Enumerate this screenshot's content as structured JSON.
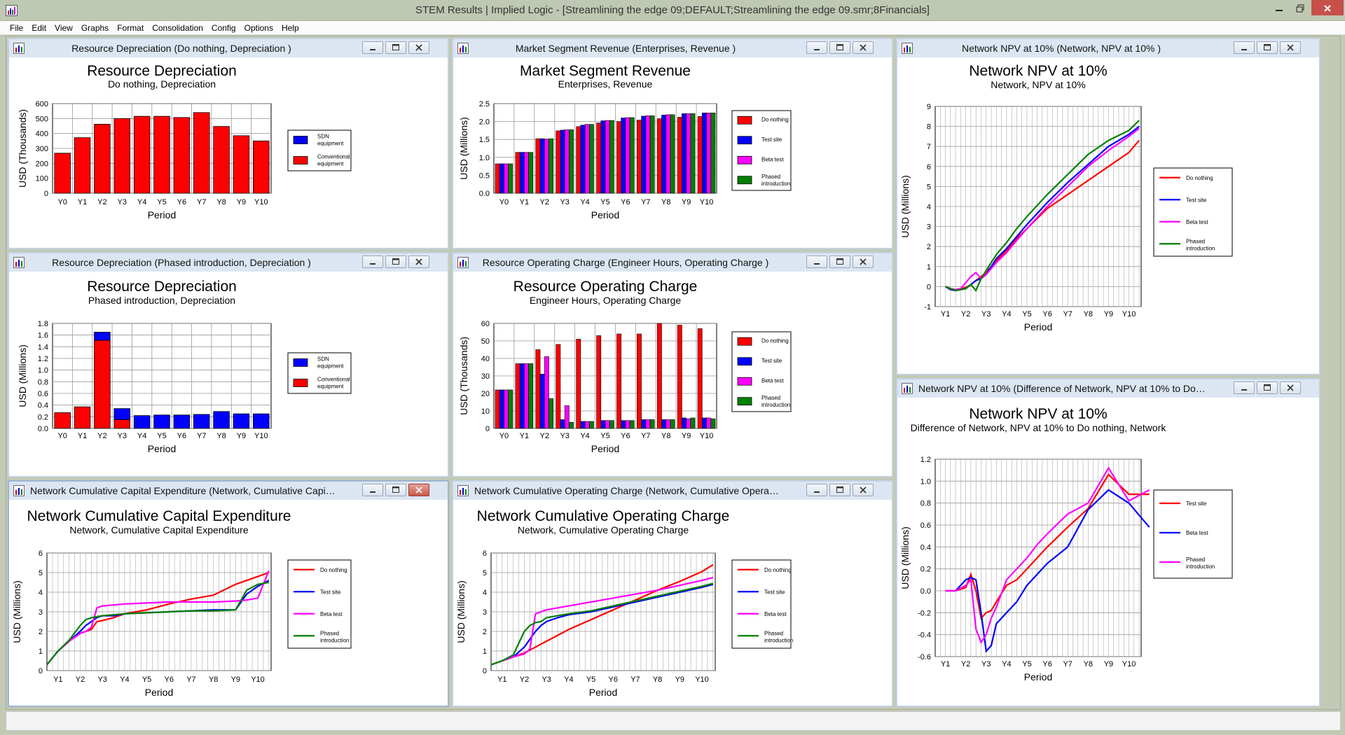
{
  "window": {
    "title": "STEM Results | Implied Logic - [Streamlining the edge 09;DEFAULT;Streamlining the edge 09.smr;8Financials]"
  },
  "menu": [
    "File",
    "Edit",
    "View",
    "Graphs",
    "Format",
    "Consolidation",
    "Config",
    "Options",
    "Help"
  ],
  "colors": {
    "red": "#ff0000",
    "blue": "#0000ff",
    "magenta": "#ff00ff",
    "green": "#008000"
  },
  "panels": [
    {
      "title": "Resource Depreciation (Do nothing, Depreciation )",
      "chart_data": {
        "type": "bar",
        "stacked": true,
        "title": "Resource Depreciation",
        "subtitle": "Do nothing, Depreciation",
        "xlabel": "Period",
        "ylabel": "USD  (Thousands)",
        "ylim": [
          0,
          600
        ],
        "yticks": [
          0,
          100,
          200,
          300,
          400,
          500,
          600
        ],
        "categories": [
          "Y0",
          "Y1",
          "Y2",
          "Y3",
          "Y4",
          "Y5",
          "Y6",
          "Y7",
          "Y8",
          "Y9",
          "Y10"
        ],
        "series": [
          {
            "name": "Conventional equipment",
            "color": "red",
            "values": [
              268,
              372,
              462,
              500,
              515,
              515,
              507,
              540,
              447,
              385,
              350
            ]
          },
          {
            "name": "SDN equipment",
            "color": "blue",
            "values": [
              0,
              0,
              0,
              0,
              0,
              0,
              0,
              0,
              0,
              0,
              0
            ]
          }
        ],
        "legend_order": [
          1,
          0
        ],
        "legend": "right",
        "grid": true
      }
    },
    {
      "title": "Market Segment Revenue (Enterprises, Revenue )",
      "chart_data": {
        "type": "bar",
        "title": "Market Segment Revenue",
        "subtitle": "Enterprises, Revenue",
        "xlabel": "Period",
        "ylabel": "USD  (Millions)",
        "ylim": [
          0,
          2.5
        ],
        "yticks": [
          "0.0",
          "0.5",
          "1.0",
          "1.5",
          "2.0",
          "2.5"
        ],
        "categories": [
          "Y0",
          "Y1",
          "Y2",
          "Y3",
          "Y4",
          "Y5",
          "Y6",
          "Y7",
          "Y8",
          "Y9",
          "Y10"
        ],
        "series": [
          {
            "name": "Do nothing",
            "color": "red",
            "values": [
              0.82,
              1.14,
              1.52,
              1.74,
              1.86,
              1.96,
              2.0,
              2.04,
              2.08,
              2.12,
              2.14
            ]
          },
          {
            "name": "Test site",
            "color": "blue",
            "values": [
              0.82,
              1.14,
              1.52,
              1.76,
              1.9,
              2.02,
              2.1,
              2.15,
              2.18,
              2.22,
              2.24
            ]
          },
          {
            "name": "Beta test",
            "color": "magenta",
            "values": [
              0.82,
              1.14,
              1.51,
              1.77,
              1.92,
              2.03,
              2.11,
              2.16,
              2.19,
              2.22,
              2.24
            ]
          },
          {
            "name": "Phased introduction",
            "color": "green",
            "values": [
              0.82,
              1.14,
              1.52,
              1.77,
              1.92,
              2.03,
              2.11,
              2.16,
              2.19,
              2.22,
              2.24
            ]
          }
        ],
        "legend": "right",
        "grid": true
      }
    },
    {
      "title": "Network NPV at 10% (Network, NPV at 10% )",
      "chart_data": {
        "type": "line",
        "title": "Network NPV at 10%",
        "subtitle": "Network, NPV at 10%",
        "xlabel": "Period",
        "ylabel": "USD  (Millions)",
        "ylim": [
          -1,
          9
        ],
        "yticks": [
          "-1",
          "0",
          "1",
          "2",
          "3",
          "4",
          "5",
          "6",
          "7",
          "8",
          "9"
        ],
        "categories": [
          "Y1",
          "Y2",
          "Y3",
          "Y4",
          "Y5",
          "Y6",
          "Y7",
          "Y8",
          "Y9",
          "Y10"
        ],
        "x": [
          0,
          0.25,
          0.5,
          0.75,
          1.0,
          1.25,
          1.5,
          1.75,
          2.0,
          2.25,
          2.5,
          3.0,
          3.5,
          4.0,
          5.0,
          6.0,
          7.0,
          8.0,
          9.0,
          9.5
        ],
        "series": [
          {
            "name": "Do nothing",
            "color": "red",
            "values": [
              0,
              -0.1,
              -0.15,
              -0.1,
              -0.05,
              0.1,
              0.3,
              0.5,
              0.7,
              1.0,
              1.3,
              1.8,
              2.4,
              2.9,
              3.9,
              4.6,
              5.3,
              6.0,
              6.7,
              7.3
            ]
          },
          {
            "name": "Test site",
            "color": "blue",
            "values": [
              0,
              -0.15,
              -0.2,
              -0.15,
              -0.1,
              0.1,
              0.3,
              0.4,
              0.6,
              1.0,
              1.4,
              1.9,
              2.5,
              3.1,
              4.2,
              5.2,
              6.1,
              7.0,
              7.6,
              8.0
            ]
          },
          {
            "name": "Beta test",
            "color": "magenta",
            "values": [
              0,
              -0.1,
              -0.15,
              -0.1,
              0.2,
              0.5,
              0.7,
              0.4,
              0.6,
              0.9,
              1.2,
              1.7,
              2.3,
              2.9,
              4.0,
              5.0,
              6.0,
              6.8,
              7.5,
              7.9
            ]
          },
          {
            "name": "Phased introduction",
            "color": "green",
            "values": [
              0,
              -0.1,
              -0.2,
              -0.15,
              -0.1,
              0.1,
              -0.2,
              0.4,
              0.8,
              1.2,
              1.6,
              2.2,
              2.9,
              3.5,
              4.6,
              5.6,
              6.6,
              7.3,
              7.8,
              8.3
            ]
          }
        ],
        "legend": "right",
        "grid": true
      }
    },
    {
      "title": "Resource Depreciation (Phased introduction, Depreciation )",
      "chart_data": {
        "type": "bar",
        "stacked": true,
        "title": "Resource Depreciation",
        "subtitle": "Phased introduction, Depreciation",
        "xlabel": "Period",
        "ylabel": "USD  (Millions)",
        "ylim": [
          0,
          1.8
        ],
        "yticks": [
          "0.0",
          "0.2",
          "0.4",
          "0.6",
          "0.8",
          "1.0",
          "1.2",
          "1.4",
          "1.6",
          "1.8"
        ],
        "categories": [
          "Y0",
          "Y1",
          "Y2",
          "Y3",
          "Y4",
          "Y5",
          "Y6",
          "Y7",
          "Y8",
          "Y9",
          "Y10"
        ],
        "series": [
          {
            "name": "Conventional equipment",
            "color": "red",
            "values": [
              0.27,
              0.37,
              1.51,
              0.15,
              0,
              0,
              0,
              0,
              0,
              0,
              0
            ]
          },
          {
            "name": "SDN equipment",
            "color": "blue",
            "values": [
              0,
              0,
              0.14,
              0.19,
              0.22,
              0.23,
              0.23,
              0.24,
              0.29,
              0.25,
              0.25
            ]
          }
        ],
        "legend_order": [
          1,
          0
        ],
        "legend": "right",
        "grid": true
      }
    },
    {
      "title": "Resource Operating Charge (Engineer Hours, Operating Charge )",
      "chart_data": {
        "type": "bar",
        "title": "Resource Operating Charge",
        "subtitle": "Engineer Hours, Operating Charge",
        "xlabel": "Period",
        "ylabel": "USD  (Thousands)",
        "ylim": [
          0,
          60
        ],
        "yticks": [
          0,
          10,
          20,
          30,
          40,
          50,
          60
        ],
        "categories": [
          "Y0",
          "Y1",
          "Y2",
          "Y3",
          "Y4",
          "Y5",
          "Y6",
          "Y7",
          "Y8",
          "Y9",
          "Y10"
        ],
        "series": [
          {
            "name": "Do nothing",
            "color": "red",
            "values": [
              22,
              37,
              45,
              48,
              51,
              53,
              54,
              54,
              60,
              59,
              57
            ]
          },
          {
            "name": "Test site",
            "color": "blue",
            "values": [
              22,
              37,
              31,
              5,
              4,
              4.5,
              4.5,
              5,
              5,
              6,
              6
            ]
          },
          {
            "name": "Beta test",
            "color": "magenta",
            "values": [
              22,
              37,
              41,
              13,
              4,
              4.5,
              4.5,
              5,
              5,
              5.5,
              6
            ]
          },
          {
            "name": "Phased introduction",
            "color": "green",
            "values": [
              22,
              37,
              17,
              3.5,
              4,
              4.5,
              4.5,
              5,
              5,
              6,
              5.5
            ]
          }
        ],
        "legend": "right",
        "grid": true
      }
    },
    {
      "title": "Network NPV at 10% (Difference of Network, NPV at 10% to Do not...",
      "chart_data": {
        "type": "line",
        "title": "Network NPV at 10%",
        "subtitle": "Difference of Network, NPV at 10% to Do nothing, Network",
        "xlabel": "Period",
        "ylabel": "USD  (Millions)",
        "ylim": [
          -0.6,
          1.2
        ],
        "yticks": [
          "-0.6",
          "-0.4",
          "-0.2",
          "0.0",
          "0.2",
          "0.4",
          "0.6",
          "0.8",
          "1.0",
          "1.2"
        ],
        "categories": [
          "Y1",
          "Y2",
          "Y3",
          "Y4",
          "Y5",
          "Y6",
          "Y7",
          "Y8",
          "Y9",
          "Y10"
        ],
        "x": [
          0,
          0.5,
          1.0,
          1.25,
          1.5,
          1.75,
          2.0,
          2.25,
          2.5,
          3.0,
          3.5,
          4.0,
          4.5,
          5.0,
          6.0,
          7.0,
          8.0,
          9.0,
          10.0
        ],
        "series": [
          {
            "name": "Test site",
            "color": "red",
            "values": [
              0,
              0,
              0.03,
              0.15,
              0.0,
              -0.25,
              -0.2,
              -0.18,
              -0.1,
              0.05,
              0.1,
              0.2,
              0.3,
              0.4,
              0.58,
              0.75,
              1.06,
              0.88,
              0.88
            ]
          },
          {
            "name": "Beta test",
            "color": "blue",
            "values": [
              0,
              0,
              0.1,
              0.12,
              0.1,
              -0.2,
              -0.55,
              -0.5,
              -0.3,
              -0.2,
              -0.1,
              0.05,
              0.15,
              0.25,
              0.4,
              0.74,
              0.92,
              0.8,
              0.58
            ]
          },
          {
            "name": "Phased introduction",
            "color": "magenta",
            "values": [
              0,
              0,
              0.05,
              0.1,
              -0.35,
              -0.47,
              -0.4,
              -0.25,
              -0.15,
              0.1,
              0.2,
              0.3,
              0.42,
              0.52,
              0.7,
              0.8,
              1.12,
              0.82,
              0.92
            ]
          }
        ],
        "legend": "right",
        "grid": true
      }
    },
    {
      "title": "Network Cumulative Capital Expenditure (Network, Cumulative Capital E...",
      "chart_data": {
        "type": "line",
        "title": "Network Cumulative Capital Expenditure",
        "subtitle": "Network, Cumulative Capital Expenditure",
        "xlabel": "Period",
        "ylabel": "USD  (Millions)",
        "ylim": [
          0,
          6
        ],
        "yticks": [
          0,
          1,
          2,
          3,
          4,
          5,
          6
        ],
        "categories": [
          "Y1",
          "Y2",
          "Y3",
          "Y4",
          "Y5",
          "Y6",
          "Y7",
          "Y8",
          "Y9",
          "Y10"
        ],
        "x": [
          -0.5,
          0,
          0.5,
          1.0,
          1.25,
          1.5,
          1.75,
          2.0,
          2.5,
          3.0,
          4.0,
          5.0,
          6.0,
          7.0,
          8.0,
          8.5,
          9.0,
          9.5
        ],
        "series": [
          {
            "name": "Do nothing",
            "color": "red",
            "values": [
              0.3,
              1.0,
              1.5,
              1.9,
              2.0,
              2.1,
              2.5,
              2.55,
              2.7,
              2.9,
              3.1,
              3.4,
              3.65,
              3.85,
              4.4,
              4.6,
              4.8,
              5.0
            ]
          },
          {
            "name": "Test site",
            "color": "blue",
            "values": [
              0.3,
              1.0,
              1.5,
              2.0,
              2.3,
              2.5,
              2.7,
              2.8,
              2.8,
              2.9,
              2.95,
              3.0,
              3.05,
              3.1,
              3.1,
              3.9,
              4.3,
              4.6
            ]
          },
          {
            "name": "Beta test",
            "color": "magenta",
            "values": [
              0.3,
              1.0,
              1.5,
              1.9,
              2.0,
              2.2,
              3.2,
              3.3,
              3.35,
              3.4,
              3.45,
              3.5,
              3.5,
              3.5,
              3.55,
              3.6,
              3.7,
              5.1
            ]
          },
          {
            "name": "Phased introduction",
            "color": "green",
            "values": [
              0.3,
              1.0,
              1.55,
              2.3,
              2.6,
              2.7,
              2.75,
              2.8,
              2.85,
              2.9,
              2.95,
              3.0,
              3.05,
              3.05,
              3.1,
              4.1,
              4.4,
              4.5
            ]
          }
        ],
        "legend": "right",
        "grid": true
      }
    },
    {
      "title": "Network Cumulative Operating Charge (Network, Cumulative Operating ...",
      "chart_data": {
        "type": "line",
        "title": "Network Cumulative Operating Charge",
        "subtitle": "Network, Cumulative Operating Charge",
        "xlabel": "Period",
        "ylabel": "USD  (Millions)",
        "ylim": [
          0,
          6
        ],
        "yticks": [
          0,
          1,
          2,
          3,
          4,
          5,
          6
        ],
        "categories": [
          "Y1",
          "Y2",
          "Y3",
          "Y4",
          "Y5",
          "Y6",
          "Y7",
          "Y8",
          "Y9",
          "Y10"
        ],
        "x": [
          -0.5,
          0,
          0.5,
          1.0,
          1.25,
          1.5,
          1.75,
          2.0,
          2.5,
          3.0,
          4.0,
          5.0,
          6.0,
          7.0,
          8.0,
          9.0,
          9.5
        ],
        "series": [
          {
            "name": "Do nothing",
            "color": "red",
            "values": [
              0.3,
              0.5,
              0.7,
              0.9,
              1.05,
              1.2,
              1.35,
              1.5,
              1.8,
              2.1,
              2.6,
              3.1,
              3.6,
              4.1,
              4.55,
              5.05,
              5.4
            ]
          },
          {
            "name": "Test site",
            "color": "blue",
            "values": [
              0.3,
              0.5,
              0.7,
              1.2,
              1.6,
              2.0,
              2.3,
              2.5,
              2.7,
              2.85,
              3.0,
              3.25,
              3.5,
              3.75,
              4.0,
              4.25,
              4.4
            ]
          },
          {
            "name": "Beta test",
            "color": "magenta",
            "values": [
              0.3,
              0.5,
              0.7,
              0.85,
              1.1,
              2.9,
              3.0,
              3.1,
              3.2,
              3.3,
              3.5,
              3.7,
              3.9,
              4.1,
              4.35,
              4.6,
              4.75
            ]
          },
          {
            "name": "Phased introduction",
            "color": "green",
            "values": [
              0.3,
              0.5,
              0.8,
              2.0,
              2.3,
              2.45,
              2.5,
              2.7,
              2.8,
              2.9,
              3.05,
              3.3,
              3.55,
              3.8,
              4.05,
              4.3,
              4.45
            ]
          }
        ],
        "legend": "right",
        "grid": true
      }
    }
  ]
}
